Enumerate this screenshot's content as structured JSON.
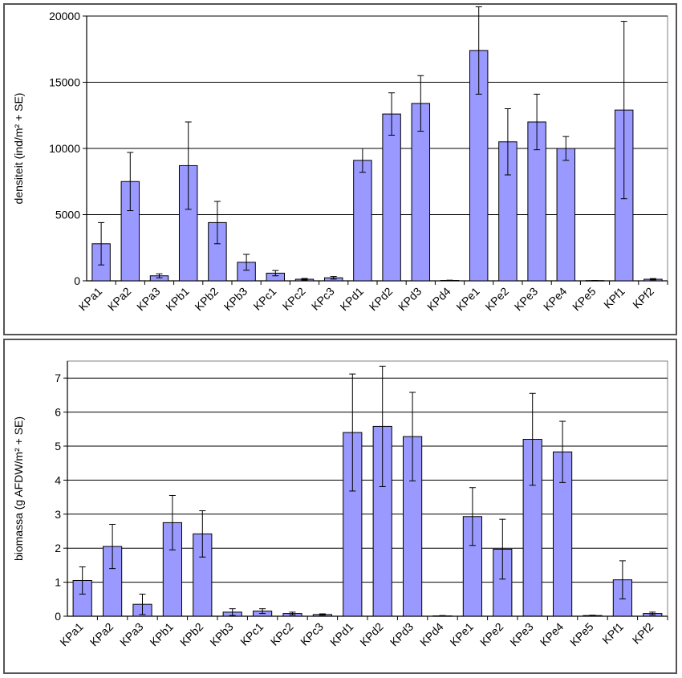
{
  "chart_data": [
    {
      "type": "bar",
      "ylabel": "densiteit (ind/m² + SE)",
      "ylim": [
        0,
        20000
      ],
      "yticks": [
        0,
        5000,
        10000,
        15000,
        20000
      ],
      "ytick_labels": [
        "0",
        "5000",
        "10000",
        "15000",
        "20000"
      ],
      "grid": true,
      "bar_color": "#9999ff",
      "categories": [
        "KPa1",
        "KPa2",
        "KPa3",
        "KPb1",
        "KPb2",
        "KPb3",
        "KPc1",
        "KPc2",
        "KPc3",
        "KPd1",
        "KPd2",
        "KPd3",
        "KPd4",
        "KPe1",
        "KPe2",
        "KPe3",
        "KPe4",
        "KPe5",
        "KPf1",
        "KPf2"
      ],
      "values": [
        2800,
        7500,
        380,
        8700,
        4400,
        1400,
        580,
        120,
        230,
        9100,
        12600,
        13400,
        30,
        17400,
        10500,
        12000,
        10000,
        20,
        12900,
        120
      ],
      "errors": [
        1600,
        2200,
        150,
        3300,
        1600,
        600,
        200,
        60,
        100,
        900,
        1600,
        2100,
        20,
        3300,
        2500,
        2100,
        900,
        10,
        6700,
        50
      ]
    },
    {
      "type": "bar",
      "ylabel": "biomassa (g AFDW/m² + SE)",
      "ylim": [
        0,
        7.5
      ],
      "yticks": [
        0,
        1,
        2,
        3,
        4,
        5,
        6,
        7
      ],
      "ytick_labels": [
        "0",
        "1",
        "2",
        "3",
        "4",
        "5",
        "6",
        "7"
      ],
      "grid": true,
      "bar_color": "#9999ff",
      "categories": [
        "KPa1",
        "KPa2",
        "KPa3",
        "KPb1",
        "KPb2",
        "KPb3",
        "KPc1",
        "KPc2",
        "KPc3",
        "KPd1",
        "KPd2",
        "KPd3",
        "KPd4",
        "KPe1",
        "KPe2",
        "KPe3",
        "KPe4",
        "KPe5",
        "KPf1",
        "KPf2"
      ],
      "values": [
        1.05,
        2.05,
        0.35,
        2.75,
        2.42,
        0.12,
        0.15,
        0.08,
        0.05,
        5.4,
        5.58,
        5.28,
        0.01,
        2.93,
        1.97,
        5.2,
        4.83,
        0.02,
        1.07,
        0.08
      ],
      "errors": [
        0.4,
        0.65,
        0.3,
        0.8,
        0.68,
        0.1,
        0.07,
        0.04,
        0.02,
        1.72,
        1.77,
        1.3,
        0.01,
        0.85,
        0.88,
        1.35,
        0.9,
        0.01,
        0.56,
        0.04
      ]
    }
  ]
}
